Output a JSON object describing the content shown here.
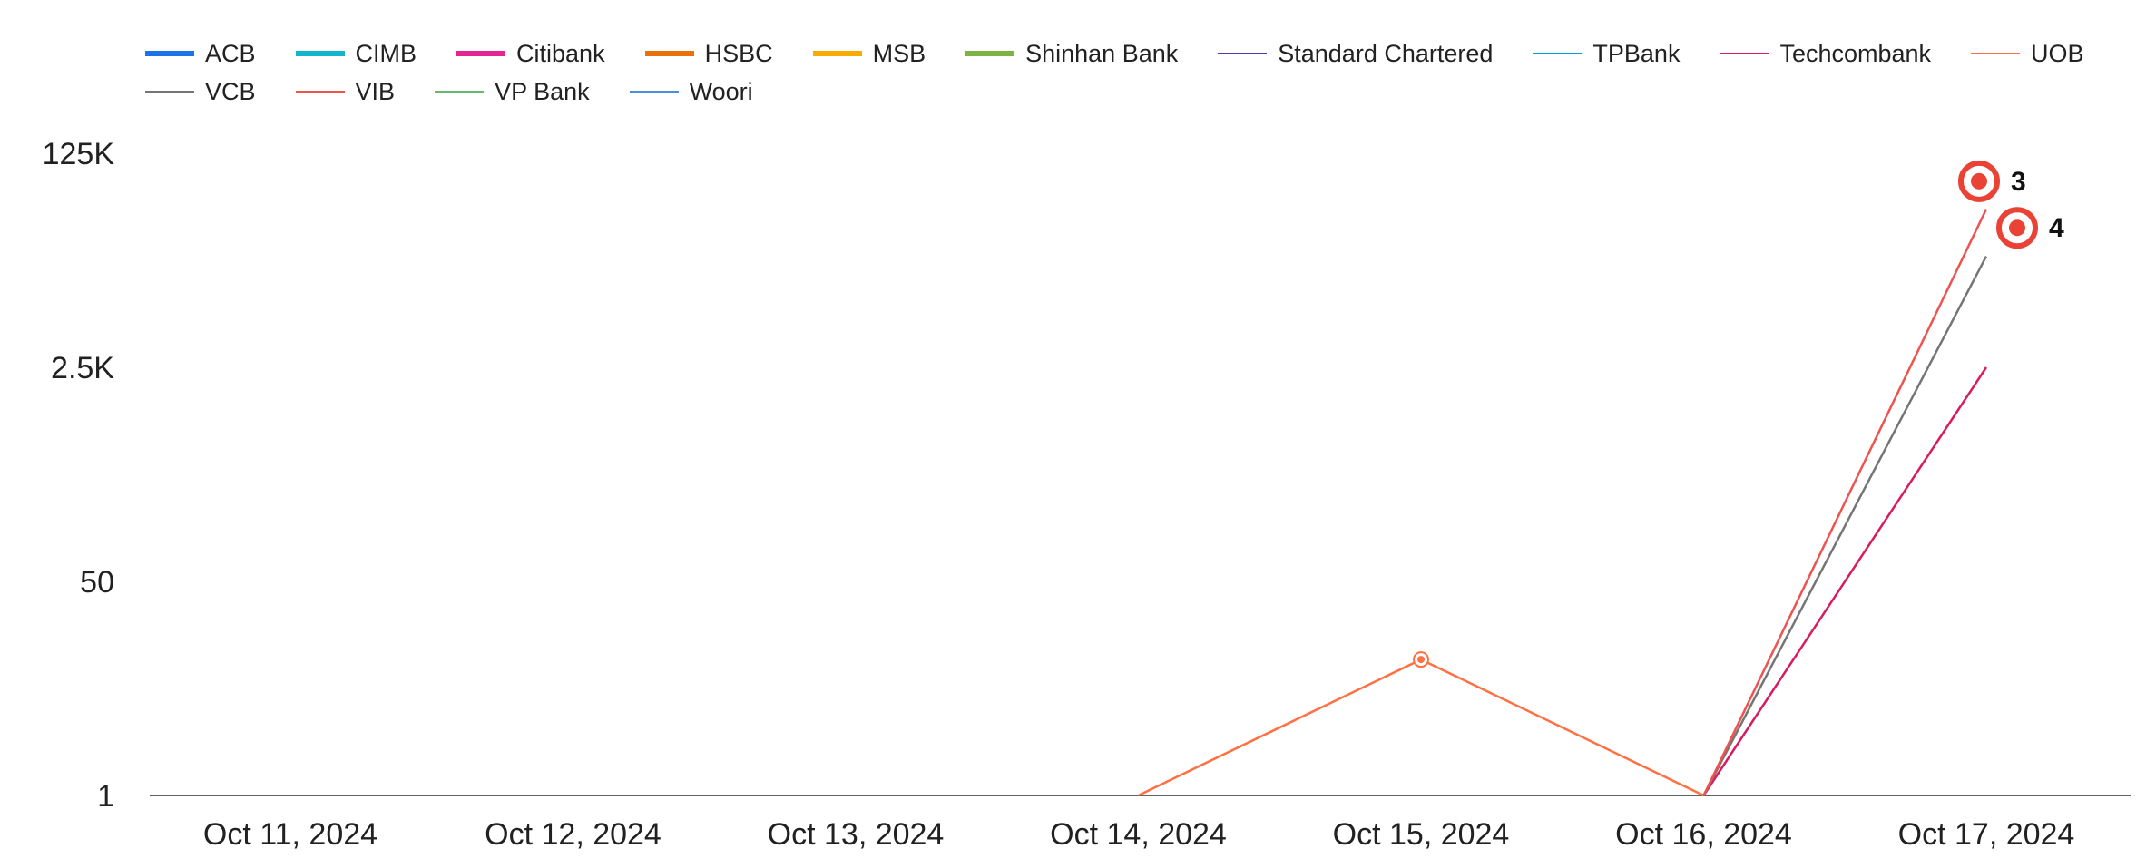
{
  "chart_data": {
    "type": "line",
    "x": [
      "Oct 11, 2024",
      "Oct 12, 2024",
      "Oct 13, 2024",
      "Oct 14, 2024",
      "Oct 15, 2024",
      "Oct 16, 2024",
      "Oct 17, 2024"
    ],
    "y_ticks": [
      {
        "label": "1",
        "value": 1
      },
      {
        "label": "50",
        "value": 50
      },
      {
        "label": "2.5K",
        "value": 2500
      },
      {
        "label": "125K",
        "value": 125000
      }
    ],
    "y_scale": "log",
    "ylim": [
      1,
      125000
    ],
    "grid": false,
    "legend_position": "top",
    "legend": [
      {
        "name": "ACB",
        "color": "#1a73e8",
        "style": "thick"
      },
      {
        "name": "CIMB",
        "color": "#12b5cb",
        "style": "thick"
      },
      {
        "name": "Citibank",
        "color": "#e52592",
        "style": "thick"
      },
      {
        "name": "HSBC",
        "color": "#e8710a",
        "style": "thick"
      },
      {
        "name": "MSB",
        "color": "#f9ab00",
        "style": "thick"
      },
      {
        "name": "Shinhan Bank",
        "color": "#7cb342",
        "style": "thick"
      },
      {
        "name": "Standard Chartered",
        "color": "#5e35b1",
        "style": "thin"
      },
      {
        "name": "TPBank",
        "color": "#039be5",
        "style": "thin"
      },
      {
        "name": "Techcombank",
        "color": "#d81b60",
        "style": "thin"
      },
      {
        "name": "UOB",
        "color": "#ff7043",
        "style": "thin"
      },
      {
        "name": "VCB",
        "color": "#757575",
        "style": "thin"
      },
      {
        "name": "VIB",
        "color": "#ef5350",
        "style": "thin"
      },
      {
        "name": "VP Bank",
        "color": "#66bb6a",
        "style": "thin"
      },
      {
        "name": "Woori",
        "color": "#4a90d9",
        "style": "thin"
      }
    ],
    "series": [
      {
        "name": "UOB",
        "color": "#ff7043",
        "values": [
          null,
          null,
          null,
          1,
          12,
          1,
          null
        ],
        "marker_index": 4
      },
      {
        "name": "Techcombank",
        "color": "#d81b60",
        "values": [
          null,
          null,
          null,
          null,
          null,
          1,
          2500
        ]
      },
      {
        "name": "VCB",
        "color": "#757575",
        "values": [
          null,
          null,
          null,
          null,
          null,
          1,
          19000
        ]
      },
      {
        "name": "VIB",
        "color": "#ef5350",
        "values": [
          null,
          null,
          null,
          null,
          null,
          1,
          45000
        ]
      }
    ],
    "annotations": [
      {
        "label": "3",
        "x_index": 6,
        "y": 75000
      },
      {
        "label": "4",
        "x_index": 6,
        "y": 32000
      }
    ]
  }
}
